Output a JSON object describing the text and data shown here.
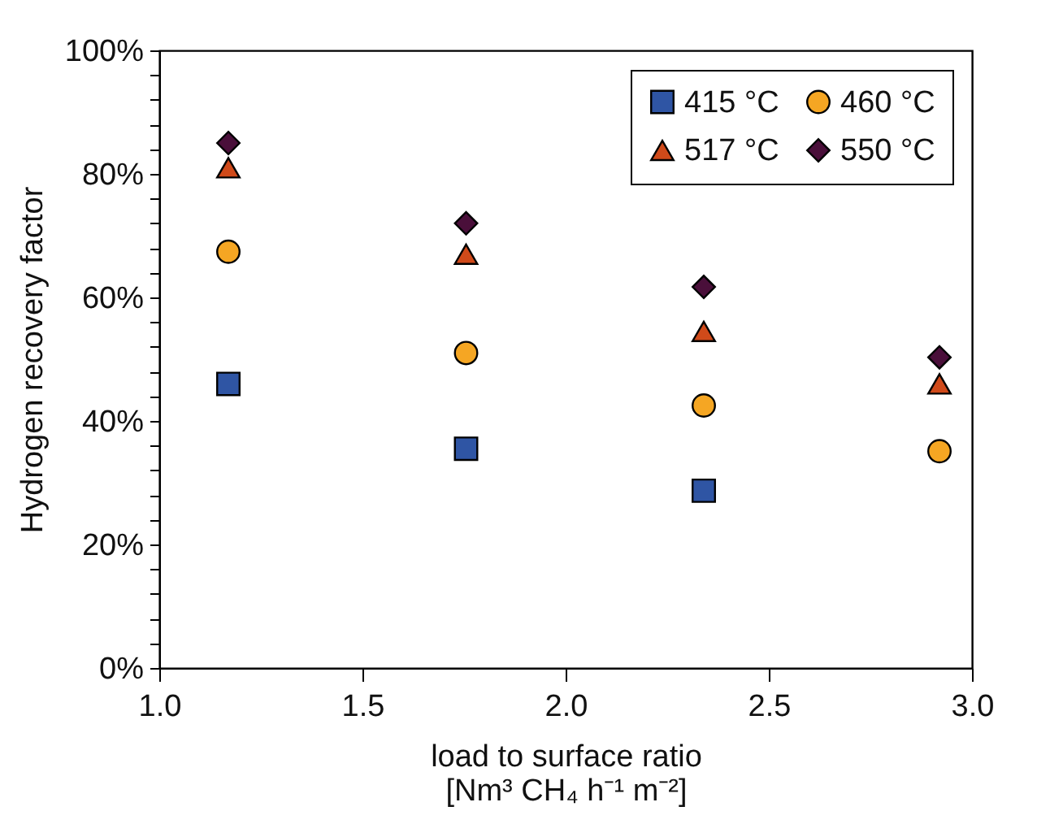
{
  "chart_data": {
    "type": "scatter",
    "xlabel": "load to surface ratio\n[Nm³ CH₄ h⁻¹ m⁻²]",
    "ylabel": "Hydrogen recovery factor",
    "xlim": [
      1.0,
      3.0
    ],
    "xticks": [
      {
        "value": 1.0,
        "label": "1.0"
      },
      {
        "value": 1.5,
        "label": "1.5"
      },
      {
        "value": 2.0,
        "label": "2.0"
      },
      {
        "value": 2.5,
        "label": "2.5"
      },
      {
        "value": 3.0,
        "label": "3.0"
      }
    ],
    "ylim": [
      0,
      100
    ],
    "yticks": [
      {
        "value": 0,
        "label": "0%"
      },
      {
        "value": 4,
        "label": null
      },
      {
        "value": 8,
        "label": null
      },
      {
        "value": 12,
        "label": null
      },
      {
        "value": 16,
        "label": null
      },
      {
        "value": 20,
        "label": "20%"
      },
      {
        "value": 24,
        "label": null
      },
      {
        "value": 28,
        "label": null
      },
      {
        "value": 32,
        "label": null
      },
      {
        "value": 36,
        "label": null
      },
      {
        "value": 40,
        "label": "40%"
      },
      {
        "value": 44,
        "label": null
      },
      {
        "value": 48,
        "label": null
      },
      {
        "value": 52,
        "label": null
      },
      {
        "value": 56,
        "label": null
      },
      {
        "value": 60,
        "label": "60%"
      },
      {
        "value": 64,
        "label": null
      },
      {
        "value": 68,
        "label": null
      },
      {
        "value": 72,
        "label": null
      },
      {
        "value": 76,
        "label": null
      },
      {
        "value": 80,
        "label": "80%"
      },
      {
        "value": 84,
        "label": null
      },
      {
        "value": 88,
        "label": null
      },
      {
        "value": 92,
        "label": null
      },
      {
        "value": 96,
        "label": null
      },
      {
        "value": 100,
        "label": "100%"
      }
    ],
    "grid": false,
    "legend": "top right",
    "series": [
      {
        "name": "415 °C",
        "color": "#2f55a4",
        "marker": "square",
        "x": [
          1.17,
          1.755,
          2.34
        ],
        "values": [
          46,
          35.5,
          28.7
        ]
      },
      {
        "name": "460 °C",
        "color": "#f5a623",
        "marker": "circle",
        "x": [
          1.17,
          1.755,
          2.34,
          2.92
        ],
        "values": [
          67.4,
          51,
          42.5,
          35.1
        ]
      },
      {
        "name": "517 °C",
        "color": "#d04a1a",
        "marker": "triangle",
        "x": [
          1.17,
          1.755,
          2.34,
          2.92
        ],
        "values": [
          81,
          67,
          54.5,
          46
        ]
      },
      {
        "name": "550 °C",
        "color": "#4a0f3a",
        "marker": "diamond",
        "x": [
          1.17,
          1.755,
          2.34,
          2.92
        ],
        "values": [
          85,
          72,
          61.7,
          50.3
        ]
      }
    ]
  }
}
